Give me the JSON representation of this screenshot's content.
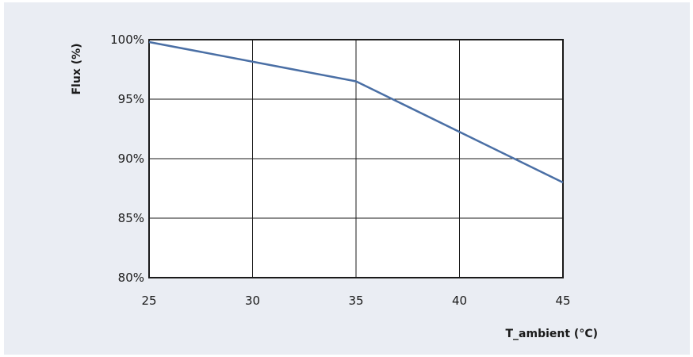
{
  "chart_data": {
    "type": "line",
    "title": "",
    "xlabel": "T_ambient (°C)",
    "ylabel": "Flux (%)",
    "xlim": [
      25,
      45
    ],
    "ylim": [
      80,
      100
    ],
    "x_ticks": [
      25,
      30,
      35,
      40,
      45
    ],
    "x_tick_labels": [
      "25",
      "30",
      "35",
      "40",
      "45"
    ],
    "y_ticks": [
      80,
      85,
      90,
      95,
      100
    ],
    "y_tick_labels": [
      "80%",
      "85%",
      "90%",
      "95%",
      "100%"
    ],
    "grid": true,
    "legend": "none",
    "series": [
      {
        "color": "#4a6fa5",
        "x": [
          25,
          35,
          45
        ],
        "y": [
          99.8,
          96.5,
          88.0
        ]
      }
    ],
    "colors": {
      "background": "#eaedf3",
      "plot_background": "#ffffff",
      "grid": "#1a1a1a",
      "line": "#4a6fa5"
    }
  }
}
